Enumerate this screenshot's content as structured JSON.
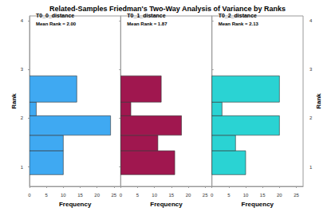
{
  "chart_data": {
    "type": "histogram",
    "title": "Related-Samples Friedman's Two-Way Analysis of Variance by Ranks",
    "orientation": "horizontal",
    "xlabel": "Frequency",
    "ylabel": "Rank",
    "bins": [
      0.84,
      1.33,
      1.65,
      2.05,
      2.33,
      2.87
    ],
    "ylim": [
      0.6,
      4.1
    ],
    "yticks": [
      1,
      2,
      3,
      4
    ],
    "xlim": [
      0,
      27
    ],
    "xticks": [
      0,
      5,
      10,
      15,
      20,
      25
    ],
    "grid": false,
    "series": [
      {
        "name": "T0_0_distance",
        "annotation": "Mean Rank = 2.00",
        "color": "#3fa9f2",
        "values": [
          10,
          10,
          24,
          2,
          14
        ]
      },
      {
        "name": "T0_1_distance",
        "annotation": "Mean Rank = 1.87",
        "color": "#a0174f",
        "values": [
          16,
          11,
          18,
          3,
          12
        ]
      },
      {
        "name": "T0_2_distance",
        "annotation": "Mean Rank = 2.13",
        "color": "#2ad3d3",
        "values": [
          10,
          7,
          20,
          3,
          20
        ]
      }
    ]
  }
}
